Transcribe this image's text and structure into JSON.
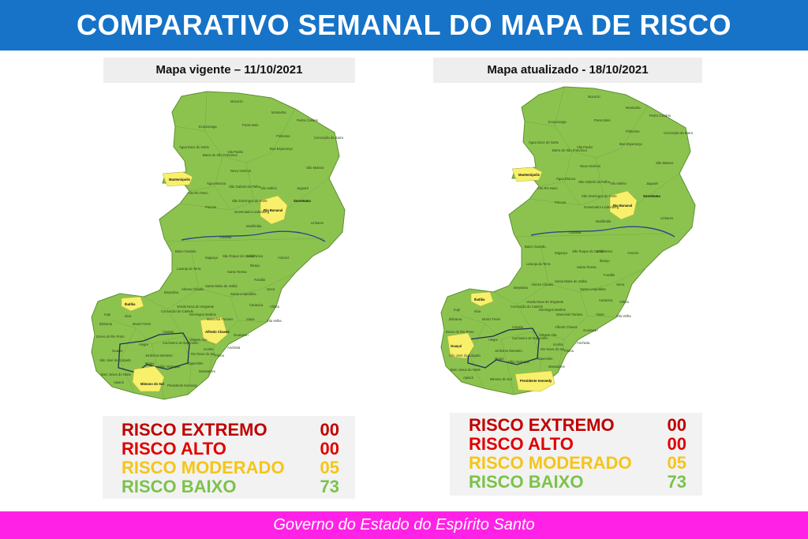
{
  "header": {
    "title": "COMPARATIVO SEMANAL DO MAPA DE RISCO"
  },
  "colors": {
    "header_bg": "#1673c8",
    "footer_bg": "#ff22e6",
    "map_green": "#8cc34f",
    "map_yellow": "#f8f06a",
    "risk_extremo": "#c00000",
    "risk_alto": "#e00000",
    "risk_moderado": "#f5c518",
    "risk_baixo": "#7cc24a"
  },
  "maps": [
    {
      "title": "Mapa vigente – 11/10/2021",
      "labels": {
        "mucurici": "Mucurici",
        "montanha": "Montanha",
        "ponto_belo": "Ponto Belo",
        "pedro_canario": "Pedro Canário",
        "ecoporanga": "Ecoporanga",
        "pinheiros": "Pinheiros",
        "conceicao_barra": "Conceição da Barra",
        "agua_doce": "Água Doce do Norte",
        "barra_sao_francisco": "Barra de São Francisco",
        "vila_pavao": "Vila Pavão",
        "boa_esperanca": "Boa Esperança",
        "nova_venecia": "Nova Venécia",
        "sao_mateus": "São Mateus",
        "mantenopolis": "Mantenópolis",
        "agua_branca": "Água Branca",
        "sao_gabriel": "São Gabriel da Palha",
        "vila_valerio": "Vila Valério",
        "jaguare": "Jaguaré",
        "alto_rio_novo": "Alto Rio Novo",
        "pancas": "Pancas",
        "sao_domingos": "São Domingos do Norte",
        "sooretama": "Sooretama",
        "governador_lindenberg": "Governador Lindenberg",
        "rio_bananal": "Rio Bananal",
        "linhares": "Linhares",
        "marilandia": "Marilândia",
        "colatina": "Colatina",
        "baixo_guandu": "Baixo Guandu",
        "itaguacu": "Itaguaçu",
        "sao_roque": "São Roque do Canaã",
        "joao_neiva": "João Neiva",
        "aracruz": "Aracruz",
        "laranja_terra": "Laranja da Terra",
        "ibiracu": "Ibiraçu",
        "santa_teresa": "Santa Teresa",
        "fundao": "Fundão",
        "serra": "Serra",
        "santa_maria_jetiba": "Santa Maria de Jetibá",
        "afonso_claudio": "Afonso Cláudio",
        "brejetuba": "Brejetuba",
        "santa_leopoldina": "Santa Leopoldina",
        "cariacica": "Cariacica",
        "vitoria": "Vitória",
        "ibatiba": "Ibatiba",
        "conceicao_castelo": "Conceição do Castelo",
        "venda_nova": "Venda Nova do Imigrante",
        "domingos_martins": "Domingos Martins",
        "viana": "Viana",
        "vila_velha": "Vila Velha",
        "irupi": "Irupi",
        "iuna": "Iúna",
        "muniz_freire": "Muniz Freire",
        "marechal_floriano": "Marechal Floriano",
        "ibitirama": "Ibitirama",
        "alfredo_chaves": "Alfredo Chaves",
        "castelo": "Castelo",
        "guarapari": "Guarapari",
        "alegre": "Alegre",
        "cachoeiro": "Cachoeiro de Itapemirim",
        "vargem_alta": "Vargem Alta",
        "anchieta": "Anchieta",
        "iconha": "Iconha",
        "piuma": "Piúma",
        "guacui": "Guaçuí",
        "jeronimo_monteiro": "Jerônimo Monteiro",
        "rio_novo_sul": "Rio Novo do Sul",
        "muqui": "Muqui",
        "atilio_vivacqua": "Atílio Vivácqua",
        "itapemirim": "Itapemirim",
        "marataizes": "Marataízes",
        "presidente_kennedy": "Presidente Kennedy",
        "mimoso_sul": "Mimoso do Sul",
        "apiaca": "Apiacá",
        "sao_jose_calcado": "São José do Calçado",
        "bom_jesus": "Bom Jesus do Norte",
        "dores_rio_preto": "Dores do Rio Preto"
      },
      "yellow_regions": [
        "Mantenópolis",
        "Rio Bananal",
        "Ibatiba",
        "Alfredo Chaves",
        "Mimoso do Sul"
      ],
      "risk": {
        "extremo": {
          "label": "RISCO EXTREMO",
          "value": "00"
        },
        "alto": {
          "label": "RISCO ALTO",
          "value": "00"
        },
        "moderado": {
          "label": "RISCO MODERADO",
          "value": "05"
        },
        "baixo": {
          "label": "RISCO BAIXO",
          "value": "73"
        }
      }
    },
    {
      "title": "Mapa atualizado - 18/10/2021",
      "labels": {
        "mucurici": "Mucurici",
        "montanha": "Montanha",
        "ponto_belo": "Ponto Belo",
        "pedro_canario": "Pedro Canário",
        "ecoporanga": "Ecoporanga",
        "pinheiros": "Pinheiros",
        "conceicao_barra": "Conceição da Barra",
        "agua_doce": "Água Doce do Norte",
        "barra_sao_francisco": "Barra de São Francisco",
        "vila_pavao": "Vila Pavão",
        "boa_esperanca": "Boa Esperança",
        "nova_venecia": "Nova Venécia",
        "sao_mateus": "São Mateus",
        "mantenopolis": "Mantenópolis",
        "agua_branca": "Água Branca",
        "sao_gabriel": "São Gabriel da Palha",
        "vila_valerio": "Vila Valério",
        "jaguare": "Jaguaré",
        "alto_rio_novo": "Alto Rio Novo",
        "pancas": "Pancas",
        "sao_domingos": "São Domingos do Norte",
        "sooretama": "Sooretama",
        "governador_lindenberg": "Governador Lindenberg",
        "rio_bananal": "Rio Bananal",
        "linhares": "Linhares",
        "marilandia": "Marilândia",
        "colatina": "Colatina",
        "baixo_guandu": "Baixo Guandu",
        "itaguacu": "Itaguaçu",
        "sao_roque": "São Roque do Canaã",
        "joao_neiva": "João Neiva",
        "aracruz": "Aracruz",
        "laranja_terra": "Laranja da Terra",
        "ibiracu": "Ibiraçu",
        "santa_teresa": "Santa Teresa",
        "fundao": "Fundão",
        "serra": "Serra",
        "santa_maria_jetiba": "Santa Maria de Jetibá",
        "afonso_claudio": "Afonso Cláudio",
        "brejetuba": "Brejetuba",
        "santa_leopoldina": "Santa Leopoldina",
        "cariacica": "Cariacica",
        "vitoria": "Vitória",
        "ibatiba": "Ibatiba",
        "conceicao_castelo": "Conceição do Castelo",
        "venda_nova": "Venda Nova do Imigrante",
        "domingos_martins": "Domingos Martins",
        "viana": "Viana",
        "vila_velha": "Vila Velha",
        "irupi": "Irupi",
        "iuna": "Iúna",
        "muniz_freire": "Muniz Freire",
        "marechal_floriano": "Marechal Floriano",
        "ibitirama": "Ibitirama",
        "alfredo_chaves": "Alfredo Chaves",
        "castelo": "Castelo",
        "guarapari": "Guarapari",
        "alegre": "Alegre",
        "cachoeiro": "Cachoeiro de Itapemirim",
        "vargem_alta": "Vargem Alta",
        "anchieta": "Anchieta",
        "iconha": "Iconha",
        "piuma": "Piúma",
        "guacui": "Guaçuí",
        "jeronimo_monteiro": "Jerônimo Monteiro",
        "rio_novo_sul": "Rio Novo do Sul",
        "muqui": "Muqui",
        "atilio_vivacqua": "Atílio Vivácqua",
        "itapemirim": "Itapemirim",
        "marataizes": "Marataízes",
        "presidente_kennedy": "Presidente Kennedy",
        "mimoso_sul": "Mimoso do Sul",
        "apiaca": "Apiacá",
        "sao_jose_calcado": "São José do Calçado",
        "bom_jesus": "Bom Jesus do Norte",
        "dores_rio_preto": "Dores do Rio Preto"
      },
      "yellow_regions": [
        "Mantenópolis",
        "Rio Bananal",
        "Ibatiba",
        "Guaçuí",
        "Presidente Kennedy"
      ],
      "risk": {
        "extremo": {
          "label": "RISCO EXTREMO",
          "value": "00"
        },
        "alto": {
          "label": "RISCO ALTO",
          "value": "00"
        },
        "moderado": {
          "label": "RISCO MODERADO",
          "value": "05"
        },
        "baixo": {
          "label": "RISCO BAIXO",
          "value": "73"
        }
      }
    }
  ],
  "footer": {
    "text": "Governo do Estado do Espírito Santo"
  }
}
